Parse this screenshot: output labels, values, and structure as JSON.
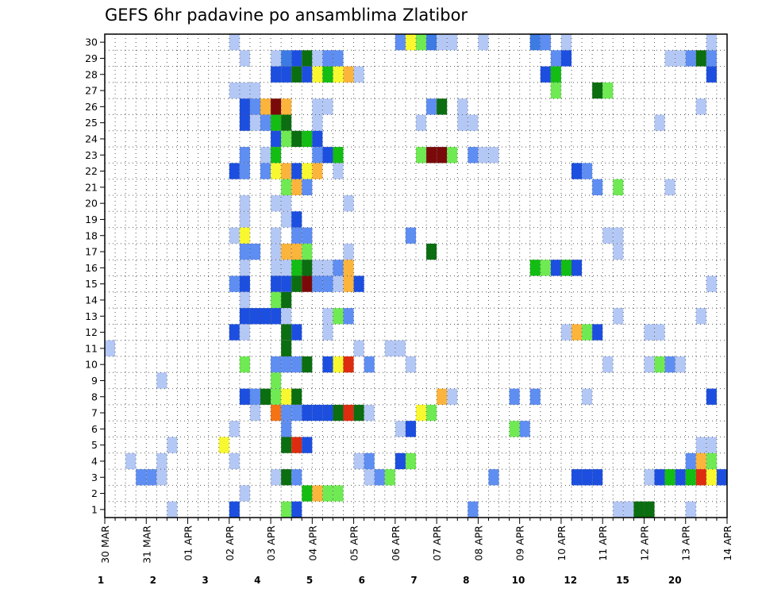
{
  "chart_data": {
    "type": "heatmap",
    "title": "GEFS 6hr padavine po ansamblima Zlatibor",
    "xlabel": "",
    "ylabel": "",
    "x_ticks": [
      "30 MAR",
      "31 MAR",
      "01 APR",
      "02 APR",
      "03 APR",
      "04 APR",
      "05 APR",
      "06 APR",
      "07 APR",
      "08 APR",
      "09 APR",
      "10 APR",
      "11 APR",
      "12 APR",
      "13 APR",
      "14 APR"
    ],
    "y_ticks": [
      "1",
      "2",
      "3",
      "4",
      "5",
      "6",
      "7",
      "8",
      "9",
      "10",
      "11",
      "12",
      "13",
      "14",
      "15",
      "16",
      "17",
      "18",
      "19",
      "20",
      "21",
      "22",
      "23",
      "24",
      "25",
      "26",
      "27",
      "28",
      "29",
      "30"
    ],
    "x_unit": "6-hour step from 30 MAR 00Z",
    "xlim": [
      0,
      60
    ],
    "ylim": [
      1,
      30
    ],
    "grid": true,
    "colorbar": {
      "labels": [
        "1",
        "2",
        "3",
        "4",
        "5",
        "6",
        "7",
        "8",
        "10",
        "12",
        "15",
        "20"
      ],
      "colors": [
        "#b4c8f5",
        "#5f8ef2",
        "#1c4fe0",
        "#3c7be3",
        "#6fea53",
        "#13bd13",
        "#0b6e10",
        "#f8f831",
        "#fbb43c",
        "#f57314",
        "#dd2c0f",
        "#7a0a0a"
      ]
    },
    "series": [
      {
        "member": 30,
        "cells": [
          [
            13,
            1
          ],
          [
            29,
            2
          ],
          [
            30,
            8
          ],
          [
            31,
            5
          ],
          [
            32,
            4
          ],
          [
            33,
            1
          ],
          [
            34,
            1
          ],
          [
            37,
            1
          ],
          [
            42,
            4
          ],
          [
            43,
            2
          ],
          [
            45,
            1
          ],
          [
            59,
            1
          ]
        ]
      },
      {
        "member": 29,
        "cells": [
          [
            14,
            1
          ],
          [
            17,
            1
          ],
          [
            18,
            4
          ],
          [
            19,
            3
          ],
          [
            20,
            7
          ],
          [
            21,
            1
          ],
          [
            22,
            2
          ],
          [
            23,
            2
          ],
          [
            44,
            2
          ],
          [
            45,
            3
          ],
          [
            55,
            1
          ],
          [
            56,
            1
          ],
          [
            57,
            2
          ],
          [
            58,
            7
          ],
          [
            59,
            2
          ]
        ]
      },
      {
        "member": 28,
        "cells": [
          [
            17,
            3
          ],
          [
            18,
            3
          ],
          [
            19,
            7
          ],
          [
            20,
            3
          ],
          [
            21,
            8
          ],
          [
            22,
            6
          ],
          [
            23,
            8
          ],
          [
            24,
            10
          ],
          [
            25,
            1
          ],
          [
            43,
            3
          ],
          [
            44,
            6
          ],
          [
            59,
            3
          ]
        ]
      },
      {
        "member": 27,
        "cells": [
          [
            13,
            1
          ],
          [
            14,
            1
          ],
          [
            15,
            1
          ],
          [
            44,
            5
          ],
          [
            48,
            7
          ],
          [
            49,
            5
          ]
        ]
      },
      {
        "member": 26,
        "cells": [
          [
            14,
            3
          ],
          [
            15,
            2
          ],
          [
            16,
            10
          ],
          [
            17,
            20
          ],
          [
            18,
            10
          ],
          [
            21,
            1
          ],
          [
            22,
            1
          ],
          [
            32,
            2
          ],
          [
            33,
            7
          ],
          [
            35,
            1
          ],
          [
            58,
            1
          ]
        ]
      },
      {
        "member": 25,
        "cells": [
          [
            14,
            3
          ],
          [
            15,
            1
          ],
          [
            16,
            2
          ],
          [
            17,
            6
          ],
          [
            18,
            7
          ],
          [
            21,
            1
          ],
          [
            31,
            1
          ],
          [
            35,
            1
          ],
          [
            36,
            1
          ],
          [
            54,
            1
          ]
        ]
      },
      {
        "member": 24,
        "cells": [
          [
            17,
            3
          ],
          [
            18,
            5
          ],
          [
            19,
            7
          ],
          [
            20,
            6
          ],
          [
            21,
            3
          ]
        ]
      },
      {
        "member": 23,
        "cells": [
          [
            14,
            2
          ],
          [
            16,
            1
          ],
          [
            17,
            6
          ],
          [
            21,
            2
          ],
          [
            22,
            3
          ],
          [
            23,
            6
          ],
          [
            31,
            5
          ],
          [
            32,
            20
          ],
          [
            33,
            20
          ],
          [
            34,
            5
          ],
          [
            36,
            2
          ],
          [
            37,
            1
          ],
          [
            38,
            1
          ]
        ]
      },
      {
        "member": 22,
        "cells": [
          [
            13,
            3
          ],
          [
            14,
            2
          ],
          [
            16,
            2
          ],
          [
            17,
            8
          ],
          [
            18,
            10
          ],
          [
            19,
            3
          ],
          [
            20,
            8
          ],
          [
            21,
            10
          ],
          [
            23,
            1
          ],
          [
            46,
            3
          ],
          [
            47,
            2
          ]
        ]
      },
      {
        "member": 21,
        "cells": [
          [
            18,
            5
          ],
          [
            19,
            10
          ],
          [
            20,
            2
          ],
          [
            48,
            2
          ],
          [
            50,
            5
          ],
          [
            55,
            1
          ]
        ]
      },
      {
        "member": 20,
        "cells": [
          [
            14,
            1
          ],
          [
            17,
            1
          ],
          [
            18,
            1
          ],
          [
            24,
            1
          ]
        ]
      },
      {
        "member": 19,
        "cells": [
          [
            14,
            1
          ],
          [
            18,
            1
          ],
          [
            19,
            3
          ]
        ]
      },
      {
        "member": 18,
        "cells": [
          [
            13,
            1
          ],
          [
            14,
            8
          ],
          [
            17,
            1
          ],
          [
            19,
            2
          ],
          [
            20,
            2
          ],
          [
            30,
            2
          ],
          [
            49,
            1
          ],
          [
            50,
            1
          ]
        ]
      },
      {
        "member": 17,
        "cells": [
          [
            14,
            2
          ],
          [
            15,
            2
          ],
          [
            17,
            1
          ],
          [
            18,
            10
          ],
          [
            19,
            10
          ],
          [
            20,
            5
          ],
          [
            24,
            1
          ],
          [
            32,
            7
          ],
          [
            50,
            1
          ]
        ]
      },
      {
        "member": 16,
        "cells": [
          [
            14,
            1
          ],
          [
            17,
            1
          ],
          [
            18,
            1
          ],
          [
            19,
            6
          ],
          [
            20,
            7
          ],
          [
            21,
            1
          ],
          [
            22,
            1
          ],
          [
            23,
            2
          ],
          [
            24,
            10
          ],
          [
            42,
            6
          ],
          [
            43,
            5
          ],
          [
            44,
            3
          ],
          [
            45,
            6
          ],
          [
            46,
            3
          ]
        ]
      },
      {
        "member": 15,
        "cells": [
          [
            13,
            2
          ],
          [
            14,
            3
          ],
          [
            17,
            3
          ],
          [
            18,
            3
          ],
          [
            19,
            7
          ],
          [
            20,
            20
          ],
          [
            21,
            2
          ],
          [
            22,
            2
          ],
          [
            23,
            1
          ],
          [
            24,
            10
          ],
          [
            25,
            3
          ],
          [
            59,
            1
          ]
        ]
      },
      {
        "member": 14,
        "cells": [
          [
            14,
            1
          ],
          [
            17,
            5
          ],
          [
            18,
            7
          ]
        ]
      },
      {
        "member": 13,
        "cells": [
          [
            14,
            3
          ],
          [
            15,
            3
          ],
          [
            16,
            3
          ],
          [
            17,
            3
          ],
          [
            18,
            1
          ],
          [
            22,
            1
          ],
          [
            23,
            5
          ],
          [
            24,
            2
          ],
          [
            50,
            1
          ],
          [
            58,
            1
          ]
        ]
      },
      {
        "member": 12,
        "cells": [
          [
            13,
            3
          ],
          [
            14,
            1
          ],
          [
            18,
            7
          ],
          [
            19,
            3
          ],
          [
            22,
            1
          ],
          [
            45,
            1
          ],
          [
            46,
            10
          ],
          [
            47,
            5
          ],
          [
            48,
            3
          ],
          [
            53,
            1
          ],
          [
            54,
            1
          ]
        ]
      },
      {
        "member": 11,
        "cells": [
          [
            1,
            1
          ],
          [
            18,
            7
          ],
          [
            25,
            1
          ],
          [
            28,
            1
          ],
          [
            29,
            1
          ]
        ]
      },
      {
        "member": 10,
        "cells": [
          [
            14,
            5
          ],
          [
            17,
            2
          ],
          [
            18,
            2
          ],
          [
            19,
            2
          ],
          [
            20,
            7
          ],
          [
            22,
            3
          ],
          [
            23,
            8
          ],
          [
            24,
            15
          ],
          [
            26,
            2
          ],
          [
            30,
            1
          ],
          [
            49,
            1
          ],
          [
            53,
            1
          ],
          [
            54,
            5
          ],
          [
            55,
            2
          ],
          [
            56,
            1
          ]
        ]
      },
      {
        "member": 9,
        "cells": [
          [
            6,
            1
          ],
          [
            17,
            5
          ]
        ]
      },
      {
        "member": 8,
        "cells": [
          [
            14,
            3
          ],
          [
            15,
            2
          ],
          [
            16,
            7
          ],
          [
            17,
            5
          ],
          [
            18,
            8
          ],
          [
            19,
            7
          ],
          [
            33,
            10
          ],
          [
            34,
            1
          ],
          [
            40,
            2
          ],
          [
            42,
            2
          ],
          [
            47,
            1
          ],
          [
            59,
            3
          ]
        ]
      },
      {
        "member": 7,
        "cells": [
          [
            15,
            1
          ],
          [
            17,
            12
          ],
          [
            18,
            2
          ],
          [
            19,
            2
          ],
          [
            20,
            3
          ],
          [
            21,
            3
          ],
          [
            22,
            3
          ],
          [
            23,
            7
          ],
          [
            24,
            15
          ],
          [
            25,
            7
          ],
          [
            26,
            1
          ],
          [
            31,
            8
          ],
          [
            32,
            5
          ]
        ]
      },
      {
        "member": 6,
        "cells": [
          [
            13,
            1
          ],
          [
            18,
            2
          ],
          [
            29,
            1
          ],
          [
            30,
            3
          ],
          [
            40,
            5
          ],
          [
            41,
            2
          ]
        ]
      },
      {
        "member": 5,
        "cells": [
          [
            7,
            1
          ],
          [
            12,
            8
          ],
          [
            18,
            7
          ],
          [
            19,
            15
          ],
          [
            20,
            3
          ],
          [
            58,
            1
          ],
          [
            59,
            1
          ]
        ]
      },
      {
        "member": 4,
        "cells": [
          [
            3,
            1
          ],
          [
            6,
            1
          ],
          [
            13,
            1
          ],
          [
            25,
            1
          ],
          [
            26,
            2
          ],
          [
            29,
            3
          ],
          [
            30,
            5
          ],
          [
            57,
            2
          ],
          [
            58,
            10
          ],
          [
            59,
            5
          ]
        ]
      },
      {
        "member": 3,
        "cells": [
          [
            4,
            2
          ],
          [
            5,
            2
          ],
          [
            6,
            1
          ],
          [
            17,
            1
          ],
          [
            18,
            7
          ],
          [
            19,
            2
          ],
          [
            26,
            1
          ],
          [
            27,
            2
          ],
          [
            28,
            5
          ],
          [
            38,
            2
          ],
          [
            46,
            3
          ],
          [
            47,
            3
          ],
          [
            48,
            3
          ],
          [
            53,
            1
          ],
          [
            54,
            3
          ],
          [
            55,
            6
          ],
          [
            56,
            3
          ],
          [
            57,
            6
          ],
          [
            58,
            15
          ],
          [
            59,
            8
          ],
          [
            60,
            3
          ]
        ]
      },
      {
        "member": 2,
        "cells": [
          [
            14,
            1
          ],
          [
            20,
            6
          ],
          [
            21,
            10
          ],
          [
            22,
            5
          ],
          [
            23,
            5
          ]
        ]
      },
      {
        "member": 1,
        "cells": [
          [
            7,
            1
          ],
          [
            13,
            3
          ],
          [
            18,
            5
          ],
          [
            19,
            3
          ],
          [
            36,
            2
          ],
          [
            50,
            1
          ],
          [
            51,
            1
          ],
          [
            52,
            7
          ],
          [
            53,
            7
          ],
          [
            57,
            1
          ]
        ]
      }
    ]
  }
}
